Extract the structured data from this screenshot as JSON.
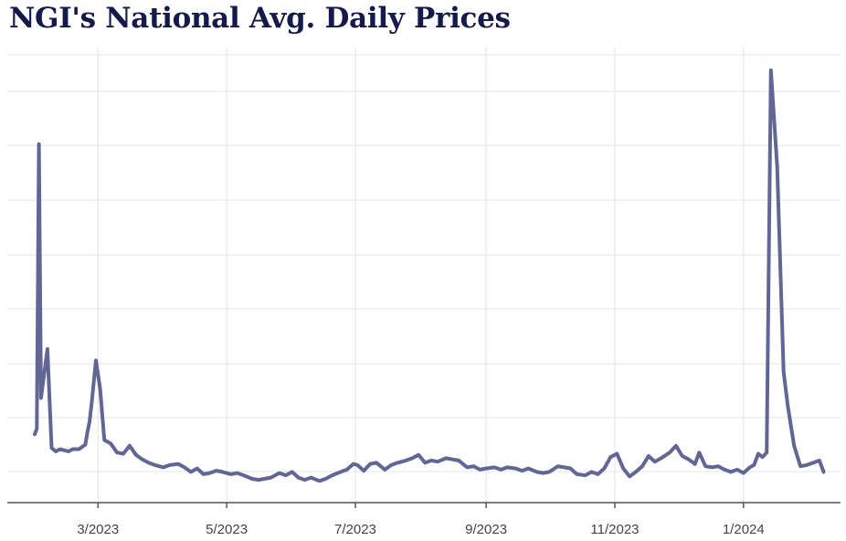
{
  "colors": {
    "title": "#141a4a",
    "line": "#626694",
    "grid": "#e4e4e4",
    "axis": "#555555"
  },
  "chart_data": {
    "type": "line",
    "title": "NGI's National Avg. Daily Prices",
    "xlabel": "",
    "ylabel": "",
    "x_ticks": [
      "3/2023",
      "5/2023",
      "7/2023",
      "9/2023",
      "11/2023",
      "1/2024"
    ],
    "x_tick_dates": [
      "2023-03-01",
      "2023-05-01",
      "2023-07-01",
      "2023-09-01",
      "2023-11-01",
      "2024-01-01"
    ],
    "xlim": [
      "2023-01-17",
      "2024-02-16"
    ],
    "y_tick_count": 9,
    "y_ticks_labeled": false,
    "y_units": "relative (unlabeled)",
    "grid": true,
    "series": [
      {
        "values": [
          [
            "2023-01-30",
            2.45
          ],
          [
            "2023-01-31",
            2.5
          ],
          [
            "2023-02-01",
            5.0
          ],
          [
            "2023-02-02",
            2.77
          ],
          [
            "2023-02-05",
            3.2
          ],
          [
            "2023-02-07",
            2.33
          ],
          [
            "2023-02-09",
            2.3
          ],
          [
            "2023-02-11",
            2.32
          ],
          [
            "2023-02-13",
            2.31
          ],
          [
            "2023-02-15",
            2.3
          ],
          [
            "2023-02-17",
            2.32
          ],
          [
            "2023-02-20",
            2.32
          ],
          [
            "2023-02-23",
            2.36
          ],
          [
            "2023-02-24",
            2.47
          ],
          [
            "2023-02-25",
            2.56
          ],
          [
            "2023-02-26",
            2.73
          ],
          [
            "2023-02-28",
            3.1
          ],
          [
            "2023-03-02",
            2.85
          ],
          [
            "2023-03-04",
            2.4
          ],
          [
            "2023-03-07",
            2.37
          ],
          [
            "2023-03-10",
            2.29
          ],
          [
            "2023-03-13",
            2.28
          ],
          [
            "2023-03-16",
            2.35
          ],
          [
            "2023-03-19",
            2.27
          ],
          [
            "2023-03-22",
            2.23
          ],
          [
            "2023-03-25",
            2.2
          ],
          [
            "2023-03-28",
            2.18
          ],
          [
            "2023-04-01",
            2.16
          ],
          [
            "2023-04-04",
            2.18
          ],
          [
            "2023-04-08",
            2.19
          ],
          [
            "2023-04-11",
            2.16
          ],
          [
            "2023-04-14",
            2.12
          ],
          [
            "2023-04-17",
            2.15
          ],
          [
            "2023-04-20",
            2.1
          ],
          [
            "2023-04-23",
            2.11
          ],
          [
            "2023-04-26",
            2.13
          ],
          [
            "2023-04-29",
            2.12
          ],
          [
            "2023-05-03",
            2.1
          ],
          [
            "2023-05-06",
            2.11
          ],
          [
            "2023-05-09",
            2.09
          ],
          [
            "2023-05-13",
            2.06
          ],
          [
            "2023-05-16",
            2.05
          ],
          [
            "2023-05-19",
            2.06
          ],
          [
            "2023-05-22",
            2.07
          ],
          [
            "2023-05-26",
            2.11
          ],
          [
            "2023-05-29",
            2.09
          ],
          [
            "2023-06-01",
            2.12
          ],
          [
            "2023-06-04",
            2.07
          ],
          [
            "2023-06-07",
            2.05
          ],
          [
            "2023-06-10",
            2.07
          ],
          [
            "2023-06-14",
            2.04
          ],
          [
            "2023-06-17",
            2.06
          ],
          [
            "2023-06-20",
            2.09
          ],
          [
            "2023-06-24",
            2.12
          ],
          [
            "2023-06-27",
            2.14
          ],
          [
            "2023-06-30",
            2.19
          ],
          [
            "2023-07-02",
            2.18
          ],
          [
            "2023-07-05",
            2.13
          ],
          [
            "2023-07-08",
            2.19
          ],
          [
            "2023-07-11",
            2.2
          ],
          [
            "2023-07-15",
            2.14
          ],
          [
            "2023-07-18",
            2.18
          ],
          [
            "2023-07-21",
            2.2
          ],
          [
            "2023-07-25",
            2.22
          ],
          [
            "2023-07-28",
            2.24
          ],
          [
            "2023-07-31",
            2.27
          ],
          [
            "2023-08-03",
            2.2
          ],
          [
            "2023-08-06",
            2.22
          ],
          [
            "2023-08-09",
            2.21
          ],
          [
            "2023-08-13",
            2.24
          ],
          [
            "2023-08-16",
            2.23
          ],
          [
            "2023-08-19",
            2.22
          ],
          [
            "2023-08-23",
            2.16
          ],
          [
            "2023-08-26",
            2.17
          ],
          [
            "2023-08-29",
            2.14
          ],
          [
            "2023-09-01",
            2.15
          ],
          [
            "2023-09-05",
            2.16
          ],
          [
            "2023-09-08",
            2.14
          ],
          [
            "2023-09-11",
            2.16
          ],
          [
            "2023-09-15",
            2.15
          ],
          [
            "2023-09-18",
            2.13
          ],
          [
            "2023-09-21",
            2.15
          ],
          [
            "2023-09-25",
            2.12
          ],
          [
            "2023-09-28",
            2.11
          ],
          [
            "2023-10-01",
            2.12
          ],
          [
            "2023-10-05",
            2.17
          ],
          [
            "2023-10-08",
            2.16
          ],
          [
            "2023-10-11",
            2.15
          ],
          [
            "2023-10-14",
            2.1
          ],
          [
            "2023-10-18",
            2.09
          ],
          [
            "2023-10-21",
            2.12
          ],
          [
            "2023-10-24",
            2.1
          ],
          [
            "2023-10-27",
            2.15
          ],
          [
            "2023-10-30",
            2.25
          ],
          [
            "2023-11-02",
            2.28
          ],
          [
            "2023-11-05",
            2.15
          ],
          [
            "2023-11-08",
            2.08
          ],
          [
            "2023-11-11",
            2.12
          ],
          [
            "2023-11-14",
            2.17
          ],
          [
            "2023-11-17",
            2.26
          ],
          [
            "2023-11-20",
            2.21
          ],
          [
            "2023-11-23",
            2.24
          ],
          [
            "2023-11-27",
            2.29
          ],
          [
            "2023-11-30",
            2.35
          ],
          [
            "2023-12-03",
            2.26
          ],
          [
            "2023-12-06",
            2.23
          ],
          [
            "2023-12-09",
            2.19
          ],
          [
            "2023-12-11",
            2.29
          ],
          [
            "2023-12-14",
            2.17
          ],
          [
            "2023-12-17",
            2.16
          ],
          [
            "2023-12-20",
            2.17
          ],
          [
            "2023-12-23",
            2.14
          ],
          [
            "2023-12-26",
            2.12
          ],
          [
            "2023-12-29",
            2.14
          ],
          [
            "2024-01-01",
            2.11
          ],
          [
            "2024-01-04",
            2.16
          ],
          [
            "2024-01-06",
            2.18
          ],
          [
            "2024-01-08",
            2.28
          ],
          [
            "2024-01-10",
            2.25
          ],
          [
            "2024-01-12",
            2.29
          ],
          [
            "2024-01-14",
            5.65
          ],
          [
            "2024-01-17",
            4.8
          ],
          [
            "2024-01-20",
            3.0
          ],
          [
            "2024-01-22",
            2.7
          ],
          [
            "2024-01-25",
            2.35
          ],
          [
            "2024-01-28",
            2.17
          ],
          [
            "2024-01-31",
            2.18
          ],
          [
            "2024-02-03",
            2.2
          ],
          [
            "2024-02-06",
            2.22
          ],
          [
            "2024-02-08",
            2.12
          ]
        ]
      }
    ]
  }
}
